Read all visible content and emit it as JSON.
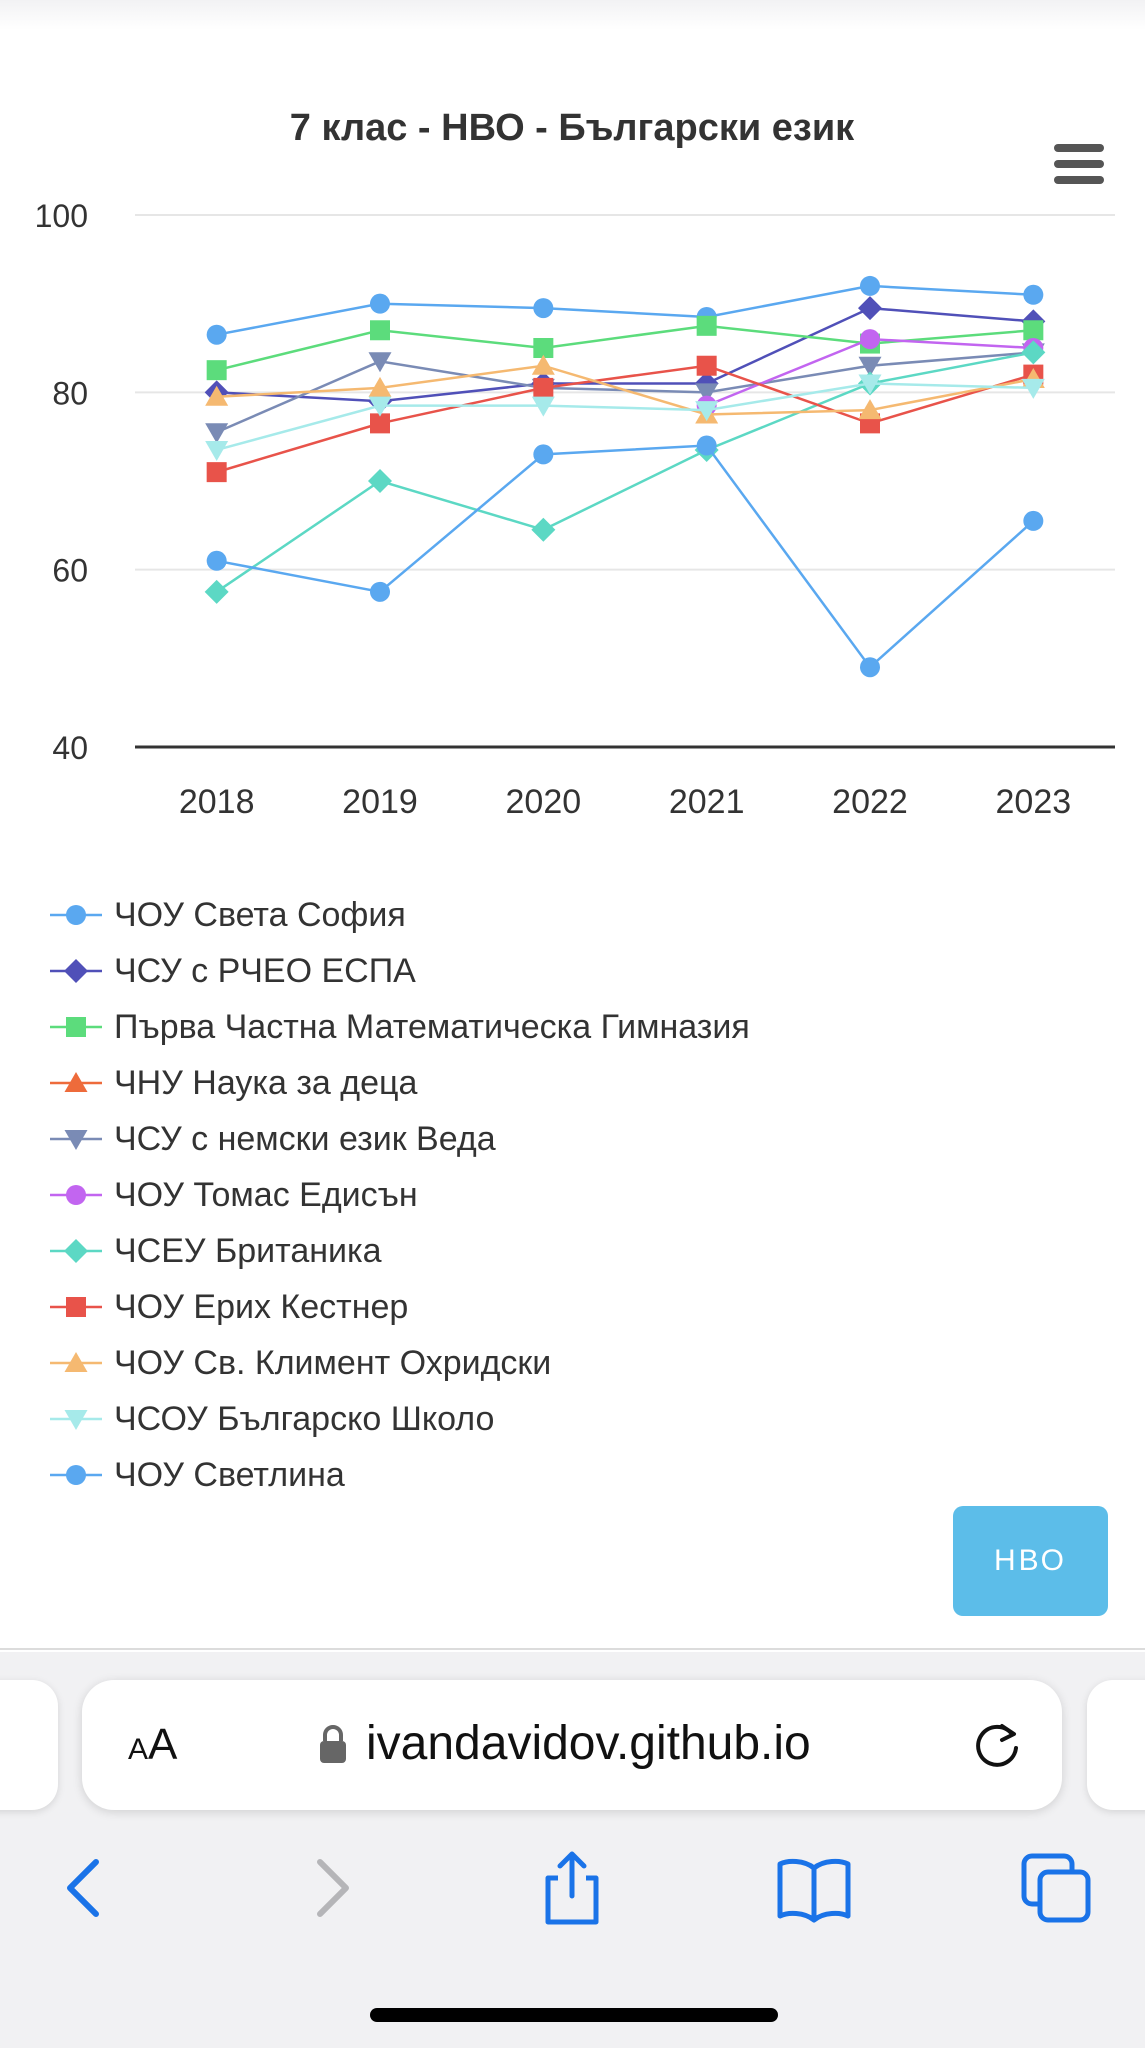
{
  "chart_data": {
    "type": "line",
    "title": "7 клас - НВО - Български език",
    "categories": [
      "2018",
      "2019",
      "2020",
      "2021",
      "2022",
      "2023"
    ],
    "ylim": [
      40,
      100
    ],
    "yticks": [
      "40",
      "60",
      "80",
      "100"
    ],
    "grid": true,
    "legend_position": "bottom",
    "series": [
      {
        "name": "ЧОУ Света София",
        "color": "#5aa8f0",
        "marker": "circle",
        "values": [
          86.5,
          90.0,
          89.5,
          88.5,
          92.0,
          91.0
        ]
      },
      {
        "name": "ЧСУ с РЧЕО ЕСПА",
        "color": "#5050b8",
        "marker": "diamond",
        "values": [
          80.0,
          79.0,
          81.0,
          81.0,
          89.5,
          88.0
        ]
      },
      {
        "name": "Първа Частна Математическа Гимназия",
        "color": "#5cdc7c",
        "marker": "square",
        "values": [
          82.5,
          87.0,
          85.0,
          87.5,
          85.5,
          87.0
        ]
      },
      {
        "name": "ЧНУ Наука за деца",
        "color": "#ee6b3b",
        "marker": "triangle",
        "values": [
          null,
          null,
          null,
          null,
          null,
          null
        ]
      },
      {
        "name": "ЧСУ с немски език Веда",
        "color": "#7a8bb5",
        "marker": "triangle-down",
        "values": [
          75.5,
          83.5,
          80.5,
          80.0,
          83.0,
          84.5
        ]
      },
      {
        "name": "ЧОУ Томас Едисън",
        "color": "#c265f0",
        "marker": "circle",
        "values": [
          null,
          null,
          null,
          78.5,
          86.0,
          85.0
        ]
      },
      {
        "name": "ЧСЕУ Британика",
        "color": "#5cd8c4",
        "marker": "diamond",
        "values": [
          57.5,
          70.0,
          64.5,
          73.5,
          81.0,
          84.5
        ]
      },
      {
        "name": "ЧОУ Ерих Кестнер",
        "color": "#e8534a",
        "marker": "square",
        "values": [
          71.0,
          76.5,
          80.5,
          83.0,
          76.5,
          82.0
        ]
      },
      {
        "name": "ЧОУ Св. Климент Охридски",
        "color": "#f5b971",
        "marker": "triangle",
        "values": [
          79.5,
          80.5,
          83.0,
          77.5,
          78.0,
          81.5
        ]
      },
      {
        "name": "ЧСОУ Българско Школо",
        "color": "#a6eaea",
        "marker": "triangle-down",
        "values": [
          73.5,
          78.5,
          78.5,
          78.0,
          81.0,
          80.5
        ]
      },
      {
        "name": "ЧОУ Светлина",
        "color": "#5aa8f0",
        "marker": "circle",
        "values": [
          61.0,
          57.5,
          73.0,
          74.0,
          49.0,
          65.5
        ]
      }
    ]
  },
  "legend": {
    "items": [
      "ЧОУ Света София",
      "ЧСУ с РЧЕО ЕСПА",
      "Първа Частна Математическа Гимназия",
      "ЧНУ Наука за деца",
      "ЧСУ с немски език Веда",
      "ЧОУ Томас Едисън",
      "ЧСЕУ Британика",
      "ЧОУ Ерих Кестнер",
      "ЧОУ Св. Климент Охридски",
      "ЧСОУ Българско Школо",
      "ЧОУ Светлина"
    ]
  },
  "page": {
    "nvo_button_label": "НВО"
  },
  "browser": {
    "text_size_big": "A",
    "text_size_small": "A",
    "url": "ivandavidov.github.io"
  },
  "toolbar": {
    "icons": [
      "back-icon",
      "forward-icon",
      "share-icon",
      "bookmarks-icon",
      "tabs-icon"
    ]
  }
}
